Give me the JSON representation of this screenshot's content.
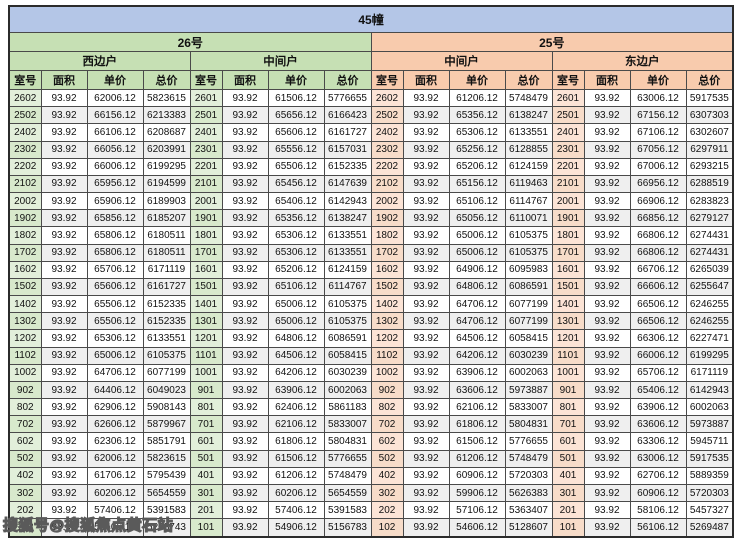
{
  "title": "45幢",
  "watermark": "搜狐号@搜狐焦点黄石站",
  "colors": {
    "title_bg": "#b4c6e7",
    "section26_bg": "#c6e0b4",
    "section25_bg": "#f8cbad",
    "room26_bg": "#e2efda",
    "room25_bg": "#fce4d6",
    "stripe": "#efefef",
    "border": "#4a4a4a"
  },
  "table": {
    "sections": [
      {
        "name": "26号",
        "units": [
          "西边户",
          "中间户"
        ]
      },
      {
        "name": "25号",
        "units": [
          "中间户",
          "东边户"
        ]
      }
    ],
    "columns": [
      "室号",
      "面积",
      "单价",
      "总价"
    ],
    "rows": [
      [
        "2602",
        "93.92",
        "62006.12",
        "5823615",
        "2601",
        "93.92",
        "61506.12",
        "5776655",
        "2602",
        "93.92",
        "61206.12",
        "5748479",
        "2601",
        "93.92",
        "63006.12",
        "5917535"
      ],
      [
        "2502",
        "93.92",
        "66156.12",
        "6213383",
        "2501",
        "93.92",
        "65656.12",
        "6166423",
        "2502",
        "93.92",
        "65356.12",
        "6138247",
        "2501",
        "93.92",
        "67156.12",
        "6307303"
      ],
      [
        "2402",
        "93.92",
        "66106.12",
        "6208687",
        "2401",
        "93.92",
        "65606.12",
        "6161727",
        "2402",
        "93.92",
        "65306.12",
        "6133551",
        "2401",
        "93.92",
        "67106.12",
        "6302607"
      ],
      [
        "2302",
        "93.92",
        "66056.12",
        "6203991",
        "2301",
        "93.92",
        "65556.12",
        "6157031",
        "2302",
        "93.92",
        "65256.12",
        "6128855",
        "2301",
        "93.92",
        "67056.12",
        "6297911"
      ],
      [
        "2202",
        "93.92",
        "66006.12",
        "6199295",
        "2201",
        "93.92",
        "65506.12",
        "6152335",
        "2202",
        "93.92",
        "65206.12",
        "6124159",
        "2201",
        "93.92",
        "67006.12",
        "6293215"
      ],
      [
        "2102",
        "93.92",
        "65956.12",
        "6194599",
        "2101",
        "93.92",
        "65456.12",
        "6147639",
        "2102",
        "93.92",
        "65156.12",
        "6119463",
        "2101",
        "93.92",
        "66956.12",
        "6288519"
      ],
      [
        "2002",
        "93.92",
        "65906.12",
        "6189903",
        "2001",
        "93.92",
        "65406.12",
        "6142943",
        "2002",
        "93.92",
        "65106.12",
        "6114767",
        "2001",
        "93.92",
        "66906.12",
        "6283823"
      ],
      [
        "1902",
        "93.92",
        "65856.12",
        "6185207",
        "1901",
        "93.92",
        "65356.12",
        "6138247",
        "1902",
        "93.92",
        "65056.12",
        "6110071",
        "1901",
        "93.92",
        "66856.12",
        "6279127"
      ],
      [
        "1802",
        "93.92",
        "65806.12",
        "6180511",
        "1801",
        "93.92",
        "65306.12",
        "6133551",
        "1802",
        "93.92",
        "65006.12",
        "6105375",
        "1801",
        "93.92",
        "66806.12",
        "6274431"
      ],
      [
        "1702",
        "93.92",
        "65806.12",
        "6180511",
        "1701",
        "93.92",
        "65306.12",
        "6133551",
        "1702",
        "93.92",
        "65006.12",
        "6105375",
        "1701",
        "93.92",
        "66806.12",
        "6274431"
      ],
      [
        "1602",
        "93.92",
        "65706.12",
        "6171119",
        "1601",
        "93.92",
        "65206.12",
        "6124159",
        "1602",
        "93.92",
        "64906.12",
        "6095983",
        "1601",
        "93.92",
        "66706.12",
        "6265039"
      ],
      [
        "1502",
        "93.92",
        "65606.12",
        "6161727",
        "1501",
        "93.92",
        "65106.12",
        "6114767",
        "1502",
        "93.92",
        "64806.12",
        "6086591",
        "1501",
        "93.92",
        "66606.12",
        "6255647"
      ],
      [
        "1402",
        "93.92",
        "65506.12",
        "6152335",
        "1401",
        "93.92",
        "65006.12",
        "6105375",
        "1402",
        "93.92",
        "64706.12",
        "6077199",
        "1401",
        "93.92",
        "66506.12",
        "6246255"
      ],
      [
        "1302",
        "93.92",
        "65506.12",
        "6152335",
        "1301",
        "93.92",
        "65006.12",
        "6105375",
        "1302",
        "93.92",
        "64706.12",
        "6077199",
        "1301",
        "93.92",
        "66506.12",
        "6246255"
      ],
      [
        "1202",
        "93.92",
        "65306.12",
        "6133551",
        "1201",
        "93.92",
        "64806.12",
        "6086591",
        "1202",
        "93.92",
        "64506.12",
        "6058415",
        "1201",
        "93.92",
        "66306.12",
        "6227471"
      ],
      [
        "1102",
        "93.92",
        "65006.12",
        "6105375",
        "1101",
        "93.92",
        "64506.12",
        "6058415",
        "1102",
        "93.92",
        "64206.12",
        "6030239",
        "1101",
        "93.92",
        "66006.12",
        "6199295"
      ],
      [
        "1002",
        "93.92",
        "64706.12",
        "6077199",
        "1001",
        "93.92",
        "64206.12",
        "6030239",
        "1002",
        "93.92",
        "63906.12",
        "6002063",
        "1001",
        "93.92",
        "65706.12",
        "6171119"
      ],
      [
        "902",
        "93.92",
        "64406.12",
        "6049023",
        "901",
        "93.92",
        "63906.12",
        "6002063",
        "902",
        "93.92",
        "63606.12",
        "5973887",
        "901",
        "93.92",
        "65406.12",
        "6142943"
      ],
      [
        "802",
        "93.92",
        "62906.12",
        "5908143",
        "801",
        "93.92",
        "62406.12",
        "5861183",
        "802",
        "93.92",
        "62106.12",
        "5833007",
        "801",
        "93.92",
        "63906.12",
        "6002063"
      ],
      [
        "702",
        "93.92",
        "62606.12",
        "5879967",
        "701",
        "93.92",
        "62106.12",
        "5833007",
        "702",
        "93.92",
        "61806.12",
        "5804831",
        "701",
        "93.92",
        "63606.12",
        "5973887"
      ],
      [
        "602",
        "93.92",
        "62306.12",
        "5851791",
        "601",
        "93.92",
        "61806.12",
        "5804831",
        "602",
        "93.92",
        "61506.12",
        "5776655",
        "601",
        "93.92",
        "63306.12",
        "5945711"
      ],
      [
        "502",
        "93.92",
        "62006.12",
        "5823615",
        "501",
        "93.92",
        "61506.12",
        "5776655",
        "502",
        "93.92",
        "61206.12",
        "5748479",
        "501",
        "93.92",
        "63006.12",
        "5917535"
      ],
      [
        "402",
        "93.92",
        "61706.12",
        "5795439",
        "401",
        "93.92",
        "61206.12",
        "5748479",
        "402",
        "93.92",
        "60906.12",
        "5720303",
        "401",
        "93.92",
        "62706.12",
        "5889359"
      ],
      [
        "302",
        "93.92",
        "60206.12",
        "5654559",
        "301",
        "93.92",
        "60206.12",
        "5654559",
        "302",
        "93.92",
        "59906.12",
        "5626383",
        "301",
        "93.92",
        "60906.12",
        "5720303"
      ],
      [
        "202",
        "93.92",
        "57406.12",
        "5391583",
        "201",
        "93.92",
        "57406.12",
        "5391583",
        "202",
        "93.92",
        "57106.12",
        "5363407",
        "201",
        "93.92",
        "58106.12",
        "5457327"
      ],
      [
        "102",
        "93.92",
        "55406.12",
        "5203743",
        "101",
        "93.92",
        "54906.12",
        "5156783",
        "102",
        "93.92",
        "54606.12",
        "5128607",
        "101",
        "93.92",
        "56106.12",
        "5269487"
      ]
    ]
  }
}
